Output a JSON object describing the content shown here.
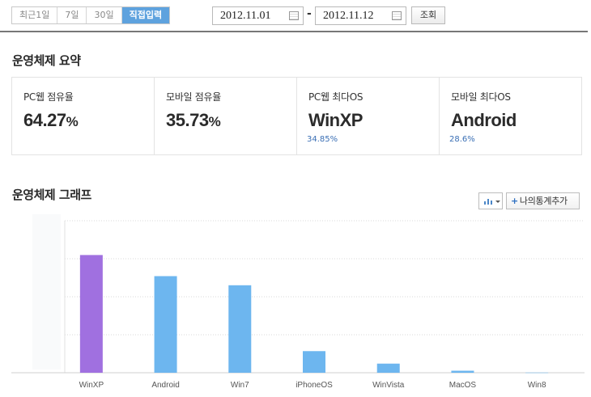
{
  "toolbar": {
    "ranges": [
      {
        "label": "최근1일",
        "active": false
      },
      {
        "label": "7일",
        "active": false
      },
      {
        "label": "30일",
        "active": false
      },
      {
        "label": "직접입력",
        "active": true
      }
    ],
    "start_date": "2012.11.01",
    "date_separator": "-",
    "end_date": "2012.11.12",
    "search_label": "조회"
  },
  "summary": {
    "title": "운영체제 요약",
    "cards": [
      {
        "label": "PC웹 점유율",
        "value": "64.27",
        "unit": "%",
        "sub": ""
      },
      {
        "label": "모바일 점유율",
        "value": "35.73",
        "unit": "%",
        "sub": ""
      },
      {
        "label": "PC웹 최다OS",
        "value": "WinXP",
        "unit": "",
        "sub": "34.85%"
      },
      {
        "label": "모바일 최다OS",
        "value": "Android",
        "unit": "",
        "sub": "28.6%"
      }
    ]
  },
  "graph": {
    "title": "운영체제 그래프",
    "add_stat_label": "나의통계추가"
  },
  "colors": {
    "accent": "#5ea2de",
    "bar_highlight": "#a070e0",
    "bar_default": "#6db6ef",
    "link_blue": "#3a6fb5"
  },
  "icons": {
    "calendar": "calendar-icon",
    "chart_type": "bar-chart-icon",
    "plus": "plus-icon"
  },
  "chart_data": {
    "type": "bar",
    "categories": [
      "WinXP",
      "Android",
      "Win7",
      "iPhoneOS",
      "WinVista",
      "MacOS",
      "Win8"
    ],
    "values": [
      34.85,
      28.6,
      25.9,
      6.4,
      2.7,
      0.6,
      0.05
    ],
    "highlight_index": 0,
    "ylim": [
      0,
      45
    ],
    "grid": true,
    "title": "",
    "xlabel": "",
    "ylabel": ""
  }
}
